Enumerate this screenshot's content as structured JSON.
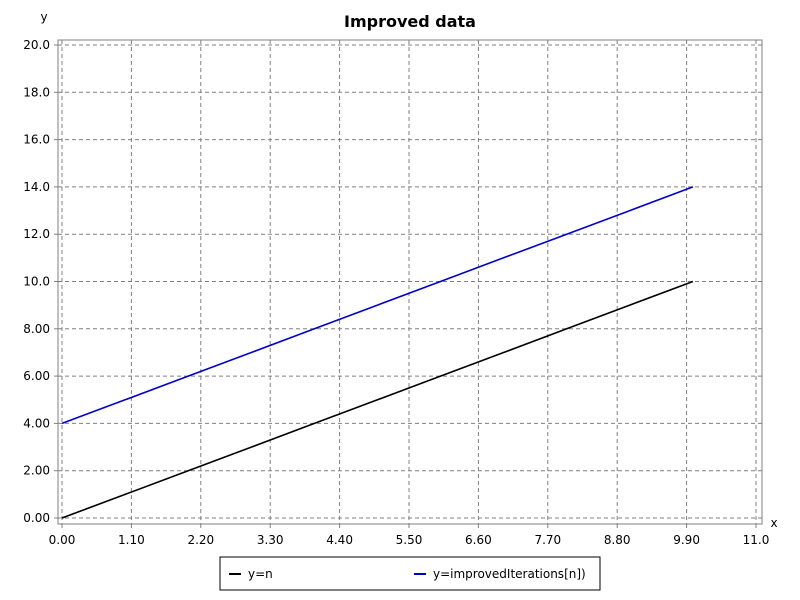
{
  "chart_data": {
    "type": "line",
    "title": "Improved data",
    "xlabel": "x",
    "ylabel": "y",
    "xlim": [
      0,
      11.0
    ],
    "ylim": [
      0,
      20.0
    ],
    "xticks": [
      "0.00",
      "1.10",
      "2.20",
      "3.30",
      "4.40",
      "5.50",
      "6.60",
      "7.70",
      "8.80",
      "9.90",
      "11.0"
    ],
    "yticks": [
      "0.00",
      "2.00",
      "4.00",
      "6.00",
      "8.00",
      "10.0",
      "12.0",
      "14.0",
      "16.0",
      "18.0",
      "20.0"
    ],
    "grid": true,
    "legend_position": "bottom",
    "series": [
      {
        "name": "y=n",
        "color": "#000000",
        "x": [
          0,
          1,
          2,
          3,
          4,
          5,
          6,
          7,
          8,
          9,
          10
        ],
        "y": [
          0,
          1,
          2,
          3,
          4,
          5,
          6,
          7,
          8,
          9,
          10
        ]
      },
      {
        "name": "y=improvedIterations[n])",
        "color": "#0000cc",
        "x": [
          0,
          1,
          2,
          3,
          4,
          5,
          6,
          7,
          8,
          9,
          10
        ],
        "y": [
          4,
          5,
          6,
          7,
          8,
          9,
          10,
          11,
          12,
          13,
          14
        ]
      }
    ]
  }
}
